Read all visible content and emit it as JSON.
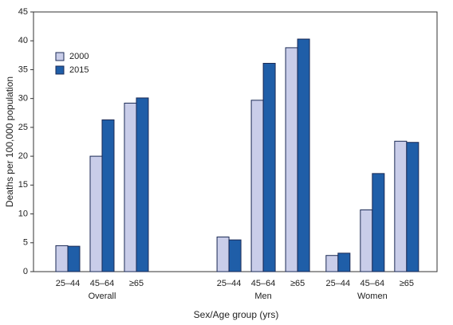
{
  "chart_data": {
    "type": "bar",
    "x_label": "Sex/Age group (yrs)",
    "y_label": "Deaths per 100,000 population",
    "categories": [
      "25–44",
      "45–64",
      "≥65",
      "25–44",
      "45–64",
      "≥65",
      "25–44",
      "45–64",
      "≥65"
    ],
    "category_groups": [
      "Overall",
      "Men",
      "Women"
    ],
    "series": [
      {
        "name": "2000",
        "color": "#c9cde9",
        "values": [
          4.5,
          20.0,
          29.2,
          6.0,
          29.7,
          38.8,
          2.8,
          10.7,
          22.6
        ]
      },
      {
        "name": "2015",
        "color": "#1f5ea8",
        "values": [
          4.4,
          26.3,
          30.1,
          5.5,
          36.1,
          40.3,
          3.2,
          17.0,
          22.4
        ]
      }
    ],
    "ylim": [
      0,
      45
    ],
    "yticks": [
      0,
      5,
      10,
      15,
      20,
      25,
      30,
      35,
      40,
      45
    ],
    "grid": false,
    "legend": "upper left"
  }
}
